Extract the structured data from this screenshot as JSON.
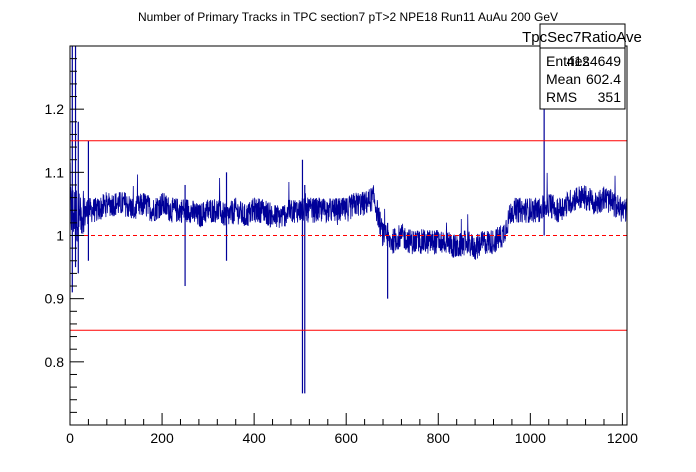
{
  "chart_data": {
    "type": "line",
    "title": "Number of Primary Tracks in TPC section7 pT>2 NPE18 Run11 AuAu 200 GeV",
    "xlabel": "",
    "ylabel": "",
    "xlim": [
      0,
      1210
    ],
    "ylim": [
      0.7,
      1.3
    ],
    "x_ticks": [
      0,
      200,
      400,
      600,
      800,
      1000,
      1200
    ],
    "x_tick_labels": [
      "0",
      "200",
      "400",
      "600",
      "800",
      "1000",
      "1200"
    ],
    "y_ticks": [
      0.8,
      0.9,
      1.0,
      1.1,
      1.2
    ],
    "y_tick_labels": [
      "0.8",
      "0.9",
      "1",
      "1.1",
      "1.2"
    ],
    "grid": false,
    "series_color": "#000099",
    "series": [
      {
        "x": [
          0,
          20,
          40,
          60,
          80,
          100,
          120,
          140,
          160,
          180,
          200,
          220,
          240,
          260,
          280,
          300,
          320,
          340,
          360,
          380,
          400,
          420,
          440,
          460,
          480,
          500,
          520,
          540,
          560,
          580,
          600,
          620,
          640,
          660,
          680,
          700,
          720,
          740,
          760,
          780,
          800,
          820,
          840,
          860,
          880,
          900,
          920,
          940,
          960,
          980,
          1000,
          1020,
          1040,
          1060,
          1080,
          1100,
          1120,
          1140,
          1160,
          1180,
          1200,
          1210
        ],
        "mean": [
          1.04,
          1.03,
          1.04,
          1.04,
          1.05,
          1.05,
          1.05,
          1.04,
          1.05,
          1.04,
          1.05,
          1.04,
          1.04,
          1.04,
          1.03,
          1.04,
          1.04,
          1.03,
          1.04,
          1.03,
          1.04,
          1.04,
          1.03,
          1.03,
          1.04,
          1.04,
          1.04,
          1.04,
          1.04,
          1.04,
          1.04,
          1.05,
          1.05,
          1.06,
          1.0,
          0.99,
          1.0,
          0.99,
          0.99,
          0.99,
          0.99,
          0.99,
          0.98,
          0.99,
          0.98,
          0.99,
          0.99,
          1.0,
          1.04,
          1.04,
          1.04,
          1.04,
          1.05,
          1.04,
          1.05,
          1.06,
          1.06,
          1.05,
          1.06,
          1.05,
          1.04,
          1.04
        ],
        "spread": [
          0.05,
          0.04,
          0.02,
          0.02,
          0.02,
          0.02,
          0.02,
          0.02,
          0.02,
          0.02,
          0.02,
          0.02,
          0.02,
          0.02,
          0.02,
          0.02,
          0.02,
          0.02,
          0.02,
          0.02,
          0.02,
          0.02,
          0.02,
          0.02,
          0.02,
          0.02,
          0.02,
          0.02,
          0.02,
          0.02,
          0.02,
          0.02,
          0.02,
          0.02,
          0.02,
          0.02,
          0.02,
          0.02,
          0.02,
          0.02,
          0.02,
          0.02,
          0.02,
          0.02,
          0.02,
          0.02,
          0.02,
          0.02,
          0.02,
          0.02,
          0.02,
          0.02,
          0.02,
          0.02,
          0.02,
          0.02,
          0.02,
          0.02,
          0.02,
          0.02,
          0.02,
          0.02
        ]
      }
    ],
    "spikes": [
      {
        "x": 5,
        "min": 0.91,
        "max": 1.3
      },
      {
        "x": 12,
        "min": 0.95,
        "max": 1.3
      },
      {
        "x": 18,
        "min": 0.94,
        "max": 1.18
      },
      {
        "x": 40,
        "min": 0.96,
        "max": 1.15
      },
      {
        "x": 250,
        "min": 0.92,
        "max": 1.08
      },
      {
        "x": 340,
        "min": 0.96,
        "max": 1.1
      },
      {
        "x": 505,
        "min": 0.75,
        "max": 1.12
      },
      {
        "x": 510,
        "min": 0.75,
        "max": 1.08
      },
      {
        "x": 690,
        "min": 0.9,
        "max": 1.02
      },
      {
        "x": 1030,
        "min": 1.0,
        "max": 1.3
      }
    ],
    "reference_lines": [
      {
        "y": 1.15,
        "style": "solid",
        "color": "#ff0000"
      },
      {
        "y": 1.0,
        "style": "dashed",
        "color": "#ff0000"
      },
      {
        "y": 0.85,
        "style": "solid",
        "color": "#ff0000"
      }
    ],
    "legend_placement": "top-right"
  },
  "stats_box": {
    "name": "TpcSec7RatioAve",
    "rows": [
      {
        "label": "Entries",
        "value": "4124649"
      },
      {
        "label": "Mean",
        "value": "602.4"
      },
      {
        "label": "RMS",
        "value": "351"
      }
    ]
  }
}
